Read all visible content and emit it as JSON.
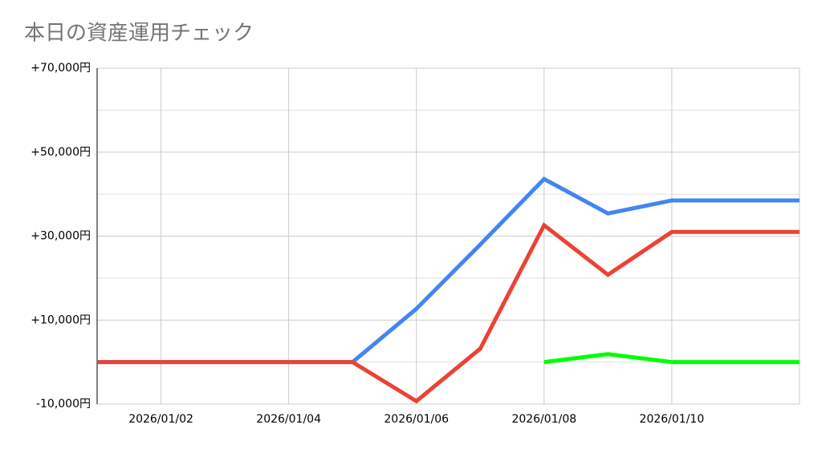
{
  "chart_data": {
    "type": "line",
    "title": "本日の資産運用チェック",
    "categories": [
      null,
      "2026/01/02",
      null,
      "2026/01/04",
      null,
      "2026/01/06",
      null,
      "2026/01/08",
      null,
      "2026/01/10",
      null,
      null
    ],
    "series": [
      {
        "color": "#4285f4",
        "values": [
          0,
          0,
          0,
          0,
          0,
          12700,
          28000,
          43600,
          35400,
          38500,
          38500,
          38500
        ]
      },
      {
        "color": "#ea4335",
        "values": [
          0,
          0,
          0,
          0,
          0,
          -9300,
          3200,
          32600,
          20800,
          31000,
          31000,
          31000
        ]
      },
      {
        "color": "#00ff00",
        "values": [
          null,
          null,
          null,
          null,
          null,
          null,
          null,
          0,
          1900,
          0,
          0,
          0
        ]
      }
    ],
    "ylim": [
      -10000,
      70000
    ],
    "yticks": [
      {
        "value": -10000,
        "label": "-10,000円"
      },
      {
        "value": 10000,
        "label": "+10,000円"
      },
      {
        "value": 30000,
        "label": "+30,000円"
      },
      {
        "value": 50000,
        "label": "+50,000円"
      },
      {
        "value": 70000,
        "label": "+70,000円"
      }
    ],
    "minor_yticks": [
      0,
      20000,
      40000,
      60000
    ],
    "grid": true
  }
}
